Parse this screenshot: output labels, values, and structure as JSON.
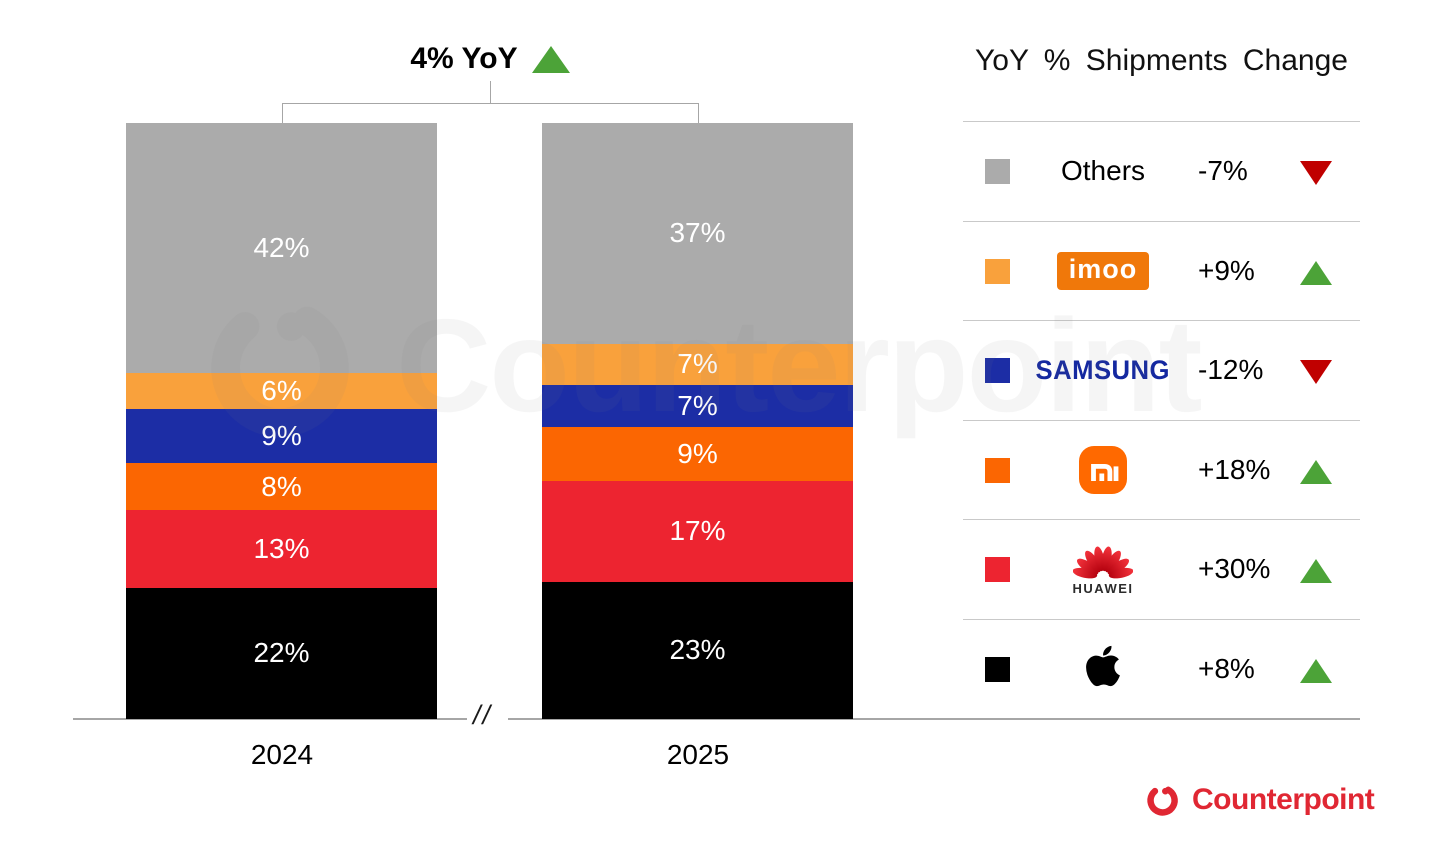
{
  "title": {
    "text": "4% YoY",
    "direction": "up"
  },
  "chart_data": {
    "type": "bar",
    "stacked": true,
    "title": "4% YoY",
    "unit": "%",
    "total": 100,
    "categories": [
      "2024",
      "2025"
    ],
    "stack_order": "top-to-bottom",
    "series": [
      {
        "name": "Others",
        "color": "#ABABAB",
        "values": [
          42,
          37
        ],
        "yoy_change": "-7%",
        "yoy_direction": "down"
      },
      {
        "name": "imoo",
        "color": "#F9A13C",
        "values": [
          6,
          7
        ],
        "yoy_change": "+9%",
        "yoy_direction": "up"
      },
      {
        "name": "Samsung",
        "color": "#1C2DA5",
        "values": [
          9,
          7
        ],
        "yoy_change": "-12%",
        "yoy_direction": "down"
      },
      {
        "name": "Xiaomi",
        "color": "#FB6602",
        "values": [
          8,
          9
        ],
        "yoy_change": "+18%",
        "yoy_direction": "up"
      },
      {
        "name": "Huawei",
        "color": "#ED2430",
        "values": [
          13,
          17
        ],
        "yoy_change": "+30%",
        "yoy_direction": "up"
      },
      {
        "name": "Apple",
        "color": "#000000",
        "values": [
          22,
          23
        ],
        "yoy_change": "+8%",
        "yoy_direction": "up"
      }
    ],
    "legend_position": "right",
    "grid": false
  },
  "axis": {
    "break_symbol": "//"
  },
  "legend": {
    "header": "YoY % Shipments Change",
    "rows": [
      {
        "brand": "Others",
        "display": "text",
        "label": "Others",
        "swatch": "#ABABAB",
        "change": "-7%",
        "direction": "down"
      },
      {
        "brand": "imoo",
        "display": "imoo-logo",
        "logo_text": "imoo",
        "swatch": "#F9A13C",
        "change": "+9%",
        "direction": "up"
      },
      {
        "brand": "Samsung",
        "display": "samsung-logo",
        "logo_text": "SAMSUNG",
        "swatch": "#1C2DA5",
        "change": "-12%",
        "direction": "down"
      },
      {
        "brand": "Xiaomi",
        "display": "mi-logo",
        "swatch": "#FB6602",
        "change": "+18%",
        "direction": "up"
      },
      {
        "brand": "Huawei",
        "display": "huawei-logo",
        "logo_text": "HUAWEI",
        "swatch": "#ED2430",
        "change": "+30%",
        "direction": "up"
      },
      {
        "brand": "Apple",
        "display": "apple-logo",
        "swatch": "#000000",
        "change": "+8%",
        "direction": "up"
      }
    ]
  },
  "branding": {
    "logo_text": "Counterpoint",
    "color": "#E02733"
  },
  "watermark": {
    "text": "Counterpoint"
  },
  "colors": {
    "up": "#4CA338",
    "down": "#C00000",
    "axis": "#A6A6A6",
    "separator": "#C9C9C9"
  }
}
